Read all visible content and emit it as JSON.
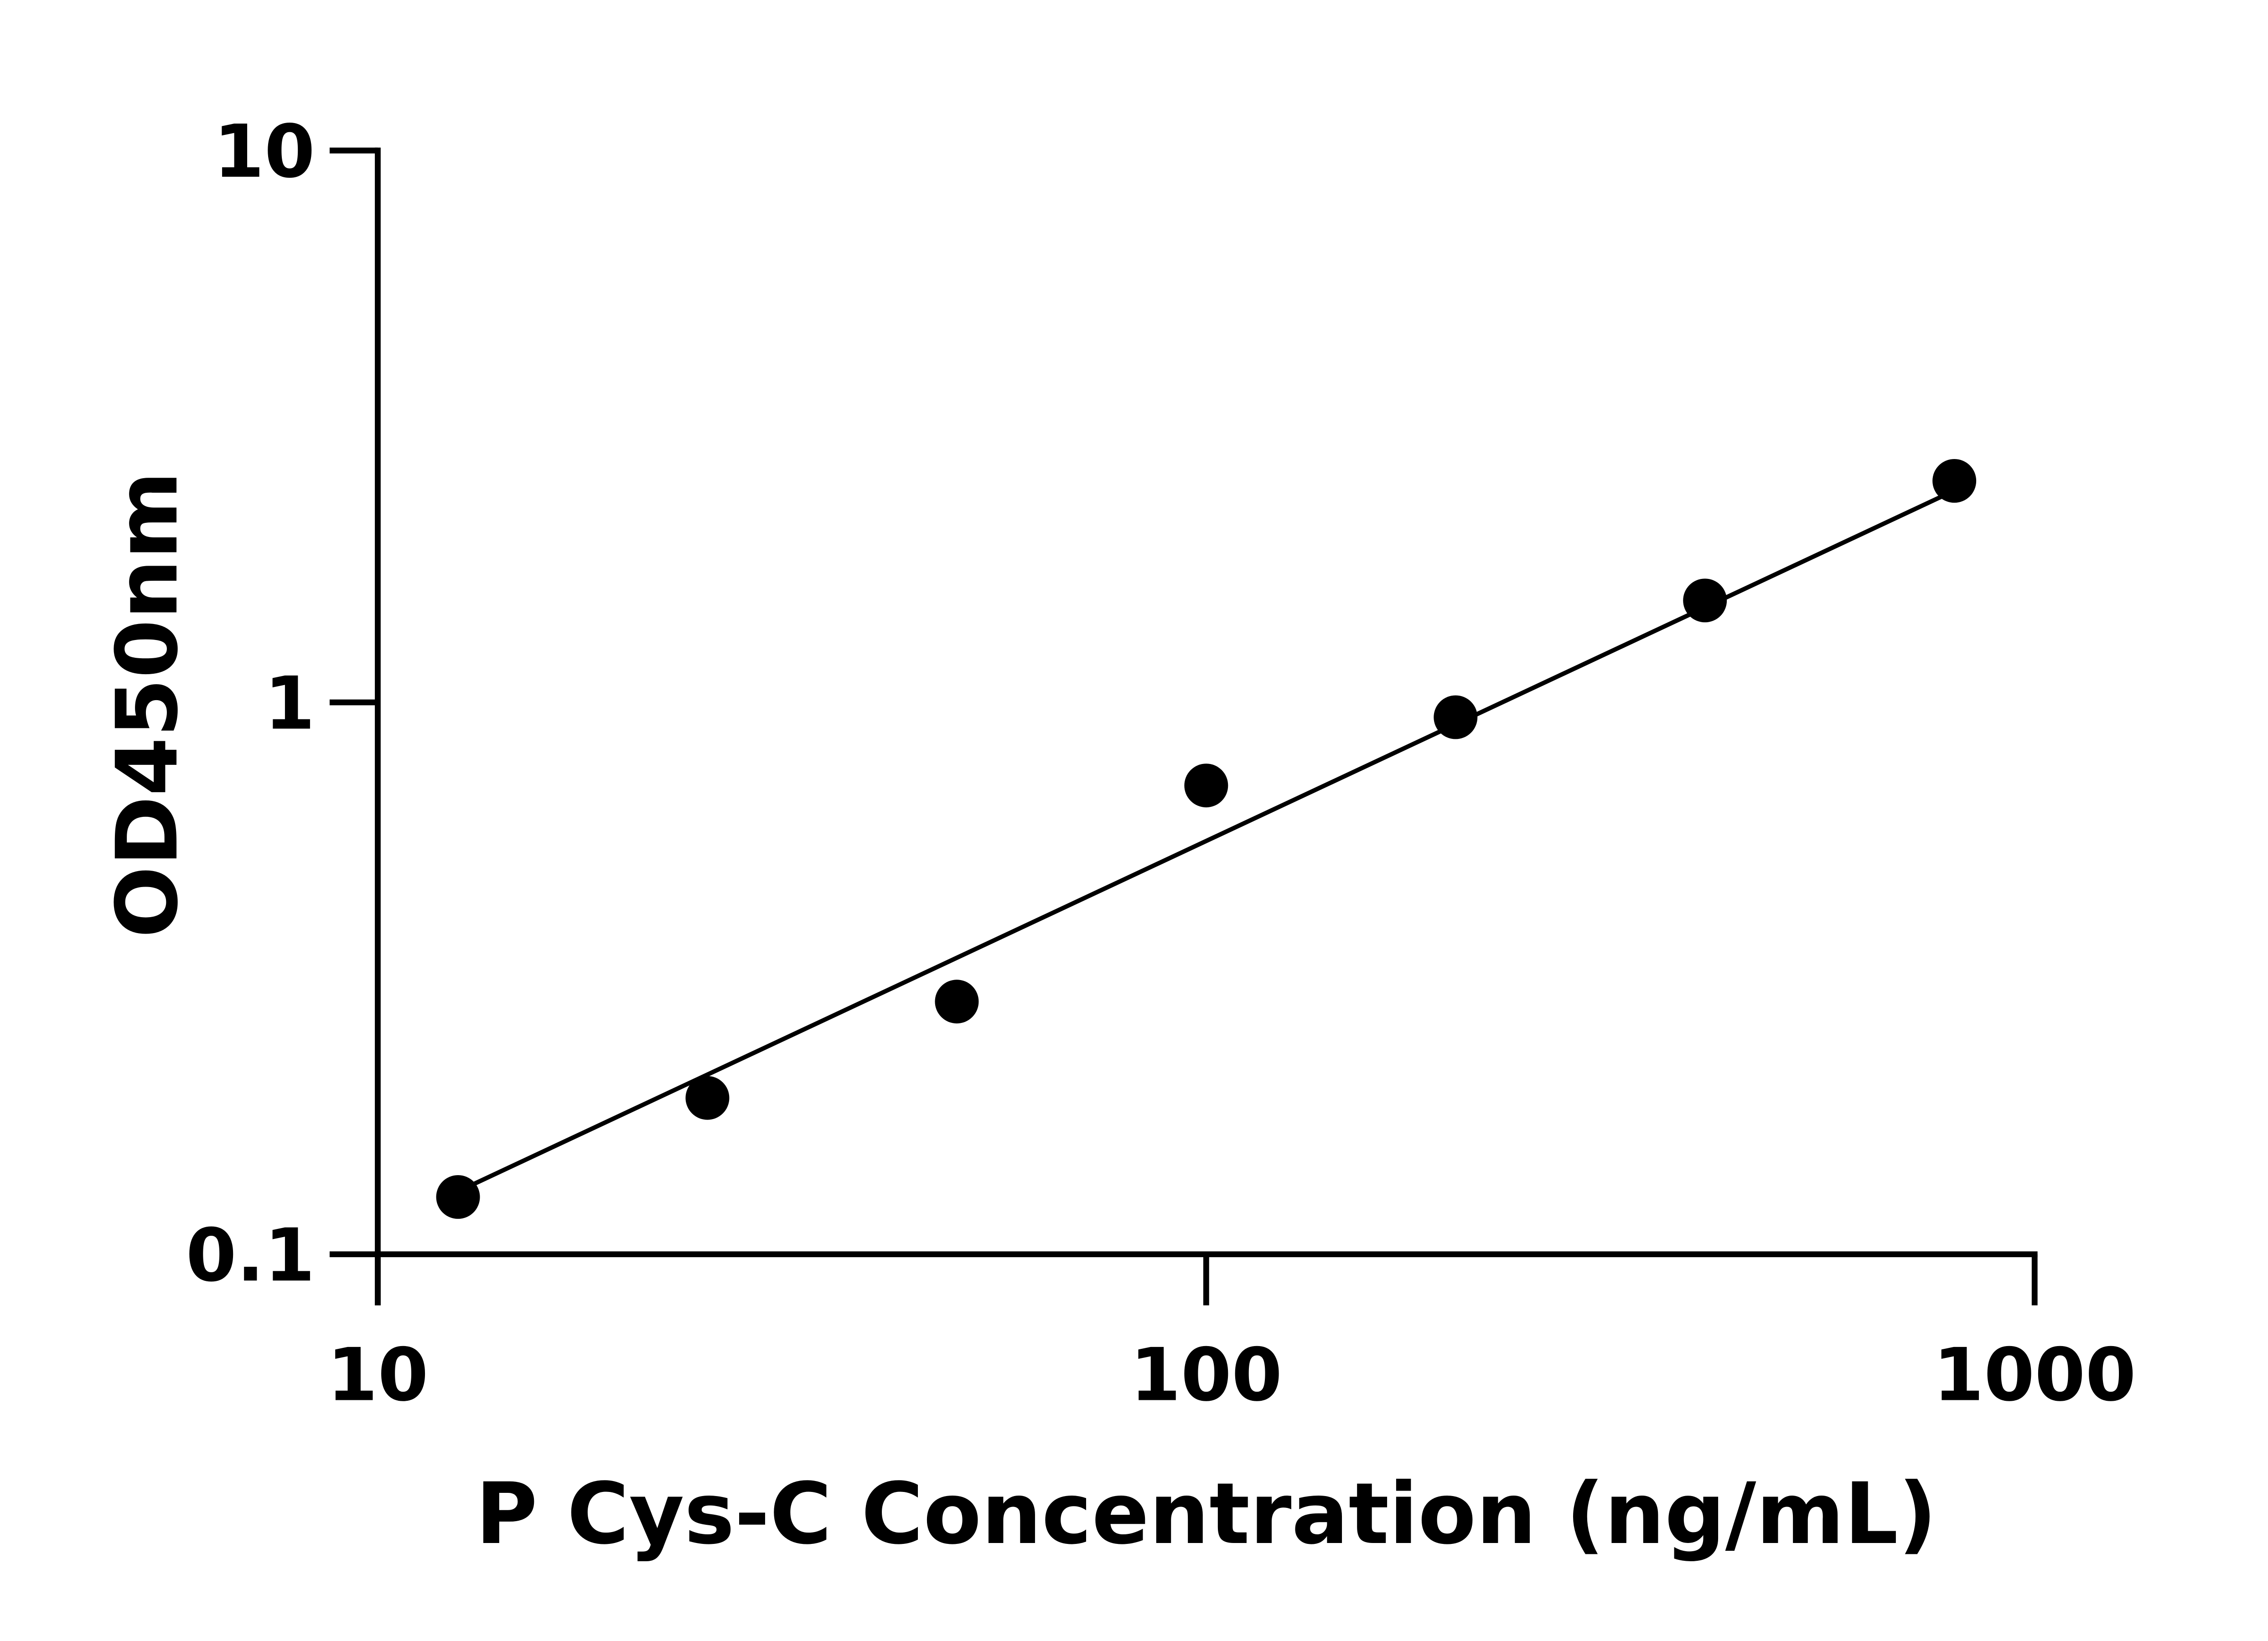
{
  "chart_data": {
    "type": "scatter",
    "title": "",
    "xlabel": "P Cys-C Concentration (ng/mL)",
    "ylabel": "OD450nm",
    "x_scale": "log",
    "y_scale": "log",
    "xlim": [
      10,
      1000
    ],
    "ylim": [
      0.1,
      10
    ],
    "x_ticks": [
      "10",
      "100",
      "1000"
    ],
    "y_ticks": [
      "0.1",
      "1",
      "10"
    ],
    "grid": false,
    "legend": "none",
    "points": {
      "x": [
        12.5,
        25,
        50,
        100,
        200,
        400,
        800
      ],
      "y": [
        0.127,
        0.192,
        0.287,
        0.707,
        0.94,
        1.53,
        2.52
      ]
    },
    "fit_line": {
      "x": [
        12.5,
        800
      ],
      "y": [
        0.13,
        2.42
      ]
    },
    "colors": {
      "marker": "#000000",
      "line": "#000000",
      "axis": "#000000"
    }
  }
}
